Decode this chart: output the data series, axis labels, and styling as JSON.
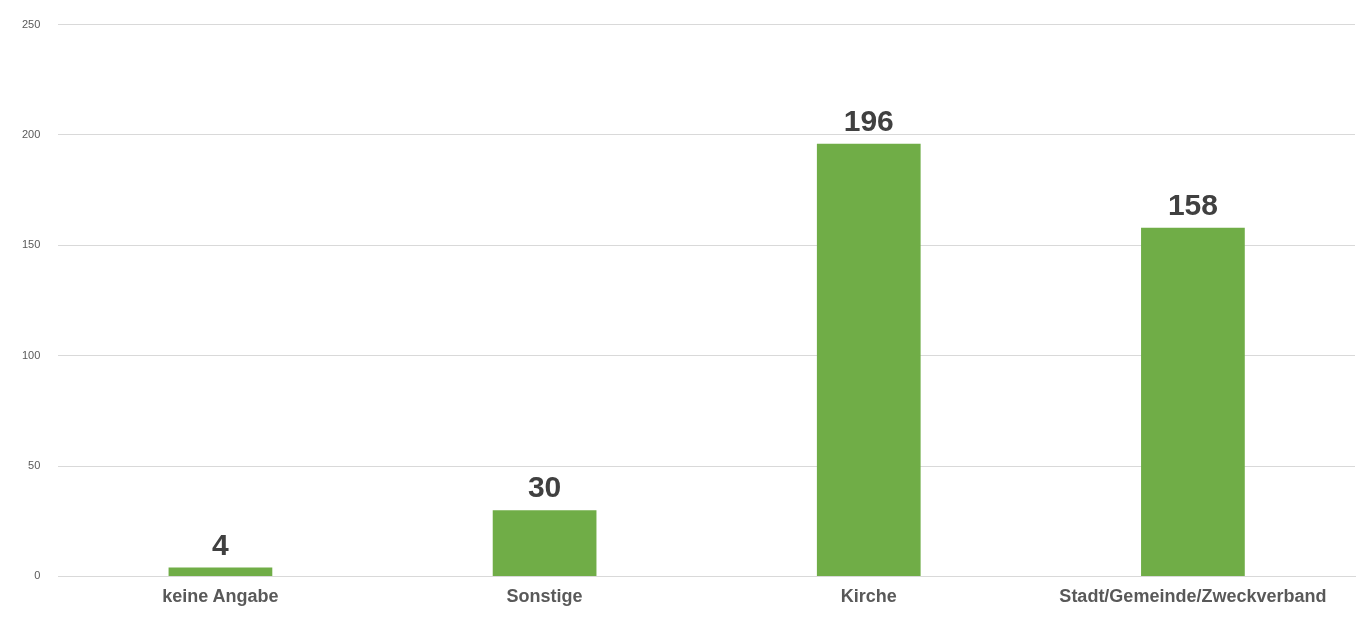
{
  "chart_data": {
    "type": "bar",
    "categories": [
      "keine Angabe",
      "Sonstige",
      "Kirche",
      "Stadt/Gemeinde/Zweckverband"
    ],
    "values": [
      4,
      30,
      196,
      158
    ],
    "color": "#70ad47",
    "ylim": [
      0,
      250
    ],
    "yticks": [
      0,
      50,
      100,
      150,
      200,
      250
    ],
    "grid": "y",
    "data_labels": true,
    "legend": false
  }
}
